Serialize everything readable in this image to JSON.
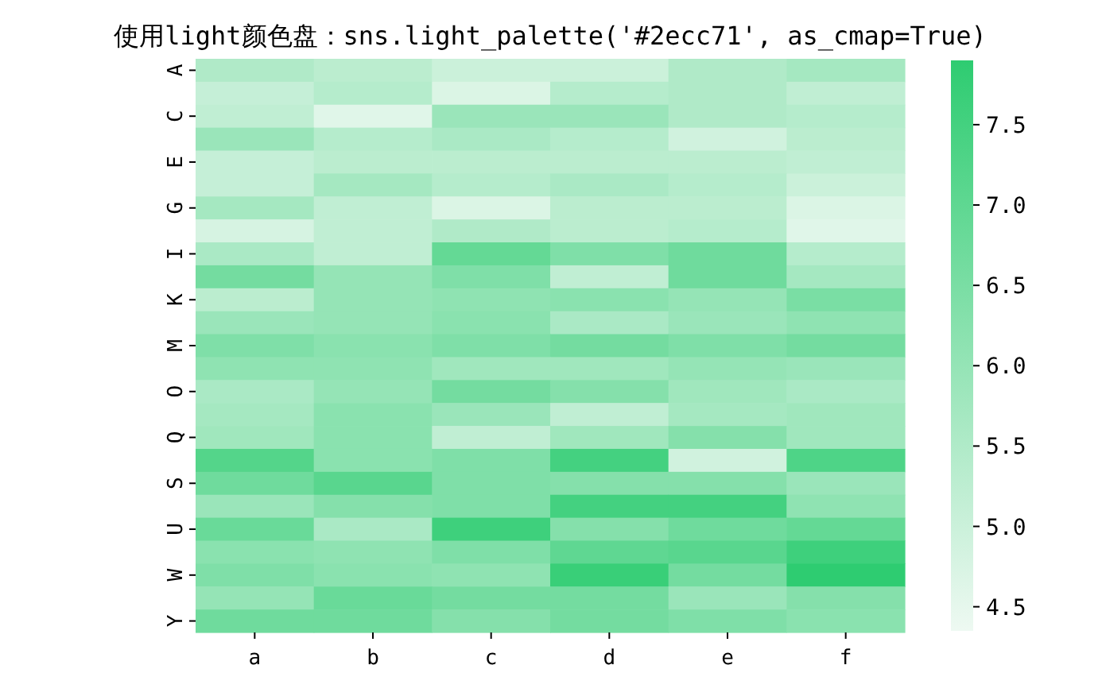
{
  "chart_data": {
    "type": "heatmap",
    "title": "使用light颜色盘：sns.light_palette('#2ecc71', as_cmap=True)",
    "categories": [
      "a",
      "b",
      "c",
      "d",
      "e",
      "f"
    ],
    "y_categories": [
      "A",
      null,
      "C",
      null,
      "E",
      null,
      "G",
      null,
      "I",
      null,
      "K",
      null,
      "M",
      null,
      "O",
      null,
      "Q",
      null,
      "S",
      null,
      "U",
      null,
      "W",
      null,
      "Y"
    ],
    "cells": [
      [
        5.5,
        5.3,
        5.0,
        5.0,
        5.5,
        5.7
      ],
      [
        5.1,
        5.4,
        4.7,
        5.4,
        5.5,
        5.2
      ],
      [
        5.2,
        4.6,
        5.9,
        5.9,
        5.5,
        5.4
      ],
      [
        5.9,
        5.4,
        5.6,
        5.4,
        4.9,
        5.3
      ],
      [
        5.1,
        5.3,
        5.3,
        5.3,
        5.3,
        5.2
      ],
      [
        5.1,
        5.7,
        5.4,
        5.6,
        5.4,
        5.0
      ],
      [
        5.7,
        5.2,
        4.7,
        5.3,
        5.3,
        4.7
      ],
      [
        4.8,
        5.2,
        5.5,
        5.3,
        5.4,
        4.6
      ],
      [
        5.6,
        5.2,
        6.9,
        6.4,
        6.7,
        5.4
      ],
      [
        6.6,
        6.0,
        6.4,
        5.2,
        6.7,
        5.7
      ],
      [
        5.3,
        6.0,
        6.1,
        6.2,
        6.0,
        6.5
      ],
      [
        5.9,
        6.0,
        6.2,
        5.6,
        5.9,
        6.1
      ],
      [
        6.4,
        6.2,
        6.4,
        6.6,
        6.4,
        6.6
      ],
      [
        6.1,
        6.1,
        5.8,
        5.8,
        6.0,
        5.9
      ],
      [
        5.6,
        6.0,
        6.6,
        6.3,
        5.8,
        5.6
      ],
      [
        5.7,
        6.2,
        5.9,
        5.2,
        5.7,
        5.8
      ],
      [
        5.8,
        6.2,
        5.2,
        5.8,
        6.3,
        5.8
      ],
      [
        7.2,
        6.2,
        6.4,
        7.5,
        4.9,
        7.3
      ],
      [
        6.7,
        7.1,
        6.4,
        6.3,
        6.3,
        5.9
      ],
      [
        5.9,
        6.3,
        6.4,
        7.5,
        7.5,
        6.1
      ],
      [
        6.8,
        5.6,
        7.6,
        6.3,
        6.7,
        6.9
      ],
      [
        6.2,
        6.1,
        6.4,
        7.0,
        7.1,
        7.6
      ],
      [
        6.4,
        6.2,
        6.1,
        7.7,
        6.6,
        7.9
      ],
      [
        6.0,
        6.8,
        6.6,
        6.6,
        5.9,
        6.3
      ],
      [
        6.7,
        6.7,
        6.3,
        6.6,
        6.4,
        6.2
      ]
    ],
    "clim": [
      4.35,
      7.9
    ],
    "cticks": [
      {
        "value": 4.5,
        "label": "4.5"
      },
      {
        "value": 5.0,
        "label": "5.0"
      },
      {
        "value": 5.5,
        "label": "5.5"
      },
      {
        "value": 6.0,
        "label": "6.0"
      },
      {
        "value": 6.5,
        "label": "6.5"
      },
      {
        "value": 7.0,
        "label": "7.0"
      },
      {
        "value": 7.5,
        "label": "7.5"
      }
    ],
    "colors": [
      "#eef9f2",
      "#2ecc71"
    ]
  }
}
